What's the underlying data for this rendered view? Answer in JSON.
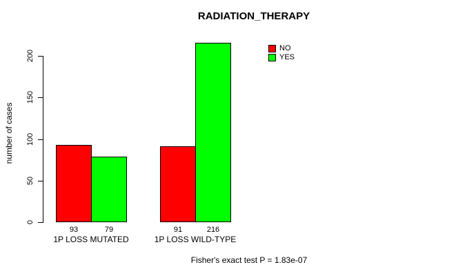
{
  "chart_data": {
    "type": "bar",
    "title": "RADIATION_THERAPY",
    "ylabel": "number of cases",
    "xlabel": "",
    "categories": [
      "1P LOSS MUTATED",
      "1P LOSS WILD-TYPE"
    ],
    "series": [
      {
        "name": "NO",
        "color": "#ff0000",
        "values": [
          93,
          91
        ]
      },
      {
        "name": "YES",
        "color": "#00ff00",
        "values": [
          79,
          216
        ]
      }
    ],
    "bar_value_labels": [
      [
        "93",
        "79"
      ],
      [
        "91",
        "216"
      ]
    ],
    "yticks": [
      0,
      50,
      100,
      150,
      200
    ],
    "ylim": [
      0,
      216
    ],
    "grid": false,
    "legend_position": "top-right",
    "bar_border_color": "#000000",
    "axis_color": "#000000",
    "footnote": "Fisher's exact test P = 1.83e-07"
  }
}
